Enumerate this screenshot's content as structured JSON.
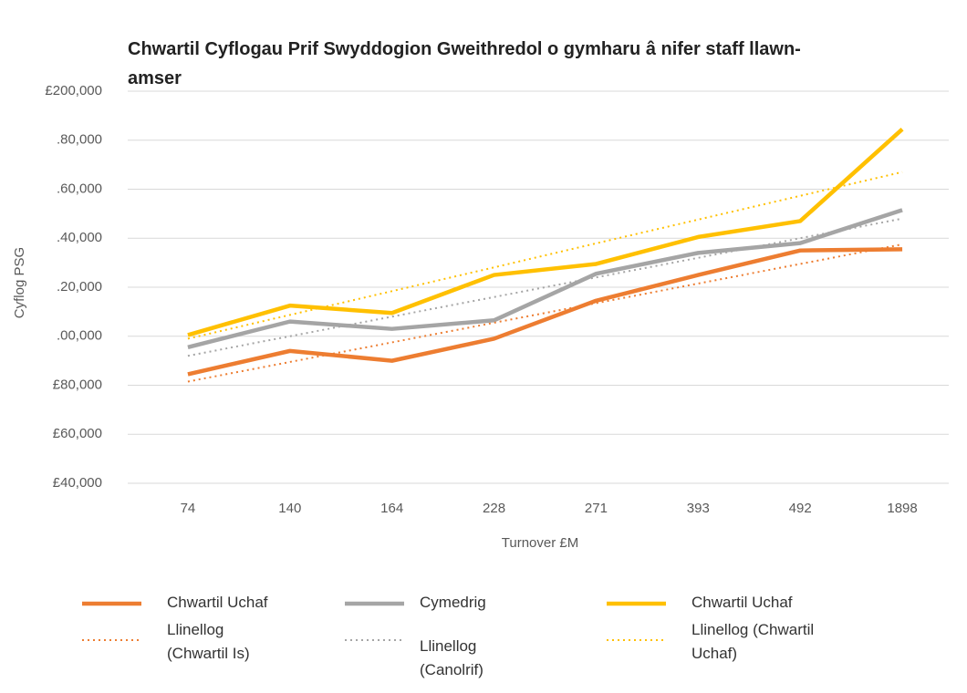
{
  "chart_data": {
    "type": "line",
    "title": "Chwartil Cyflogau Prif Swyddogion Gweithredol o gymharu â nifer staff llawn-amser",
    "x_label": "Turnover £M",
    "y_label": "Cyflog PSG",
    "categories": [
      "74",
      "140",
      "164",
      "228",
      "271",
      "393",
      "492",
      "1898"
    ],
    "ylim": [
      40000,
      200000
    ],
    "yticks": [
      {
        "value": 40000,
        "label": "£40,000"
      },
      {
        "value": 60000,
        "label": "£60,000"
      },
      {
        "value": 80000,
        "label": "£80,000"
      },
      {
        "value": 100000,
        "label": ".00,000"
      },
      {
        "value": 120000,
        "label": ".20,000"
      },
      {
        "value": 140000,
        "label": ".40,000"
      },
      {
        "value": 160000,
        "label": ".60,000"
      },
      {
        "value": 180000,
        "label": ".80,000"
      },
      {
        "value": 200000,
        "label": "£200,000"
      }
    ],
    "grid": true,
    "series": [
      {
        "name": "Chwartil Uchaf",
        "color": "#ed7d31",
        "style": "solid",
        "values": [
          84500,
          94000,
          90000,
          99000,
          114500,
          125000,
          135000,
          135500
        ]
      },
      {
        "name": "Cymedrig",
        "color": "#a5a5a5",
        "style": "solid",
        "values": [
          95500,
          106000,
          103000,
          106500,
          125500,
          134000,
          138000,
          151500
        ]
      },
      {
        "name": "Chwartil Uchaf",
        "color": "#ffc000",
        "style": "solid",
        "values": [
          100500,
          112500,
          109500,
          125000,
          129500,
          140500,
          147000,
          184500
        ]
      },
      {
        "name": "Llinellog (Chwartil Is)",
        "color": "#ed7d31",
        "style": "dotted",
        "values": [
          81500,
          89500,
          97500,
          105500,
          113500,
          121500,
          129500,
          137500
        ]
      },
      {
        "name": "Llinellog (Canolrif)",
        "color": "#a5a5a5",
        "style": "dotted",
        "values": [
          92000,
          100000,
          108000,
          116000,
          124000,
          132000,
          140000,
          148000
        ]
      },
      {
        "name": "Llinellog (Chwartil Uchaf)",
        "color": "#ffc000",
        "style": "dotted",
        "values": [
          99000,
          108700,
          118400,
          128100,
          137900,
          147600,
          157300,
          167000
        ]
      }
    ]
  }
}
